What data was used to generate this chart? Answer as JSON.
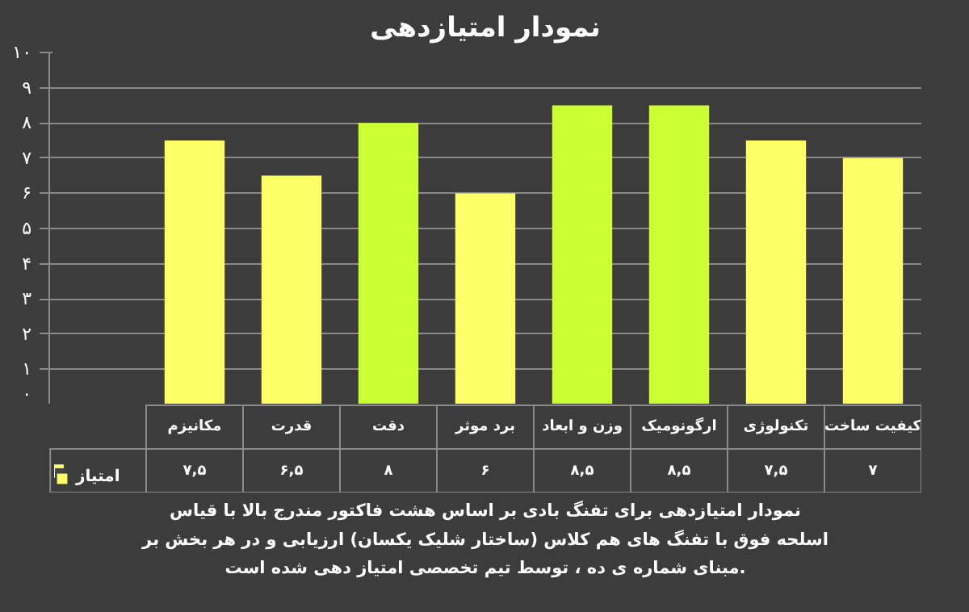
{
  "chart_data": {
    "type": "bar",
    "title": "نمودار امتیازدهی",
    "categories": [
      "مکانیزم",
      "قدرت",
      "دقت",
      "برد موثر",
      "وزن و ابعاد",
      "ارگونومیک",
      "تکنولوژی",
      "کیفیت ساخت"
    ],
    "series": [
      {
        "name": "امتیاز",
        "color": "#ffff66",
        "colors": [
          "#ffff66",
          "#ffff66",
          "#ccff33",
          "#ffff66",
          "#ccff33",
          "#ccff33",
          "#ffff66",
          "#ffff66"
        ],
        "values": [
          7.5,
          6.5,
          8,
          6,
          8.5,
          8.5,
          7.5,
          7
        ],
        "value_labels": [
          "۷,۵",
          "۶,۵",
          "۸",
          "۶",
          "۸,۵",
          "۸,۵",
          "۷,۵",
          "۷"
        ]
      }
    ],
    "ylim": [
      0,
      10
    ],
    "yticks": [
      {
        "value": 0,
        "label": "۰"
      },
      {
        "value": 1,
        "label": "۱"
      },
      {
        "value": 2,
        "label": "۲"
      },
      {
        "value": 3,
        "label": "۳"
      },
      {
        "value": 4,
        "label": "۴"
      },
      {
        "value": 5,
        "label": "۵"
      },
      {
        "value": 6,
        "label": "۶"
      },
      {
        "value": 7,
        "label": "۷"
      },
      {
        "value": 8,
        "label": "۸"
      },
      {
        "value": 9,
        "label": "۹"
      },
      {
        "value": 10,
        "label": "۱۰"
      }
    ],
    "grid": "y",
    "legend": "bottom left",
    "annotations": [
      "نمودار امتیازدهی برای تفنگ بادی بر اساس هشت فاکتور مندرج بالا با قیاس اسلحه فوق با تفنگ های هم کلاس (ساختار شلیک یکسان) ارزیابی و در هر بخش بر مبنای شماره ی ده ، توسط تیم تخصصی امتیاز دهی شده است."
    ]
  }
}
